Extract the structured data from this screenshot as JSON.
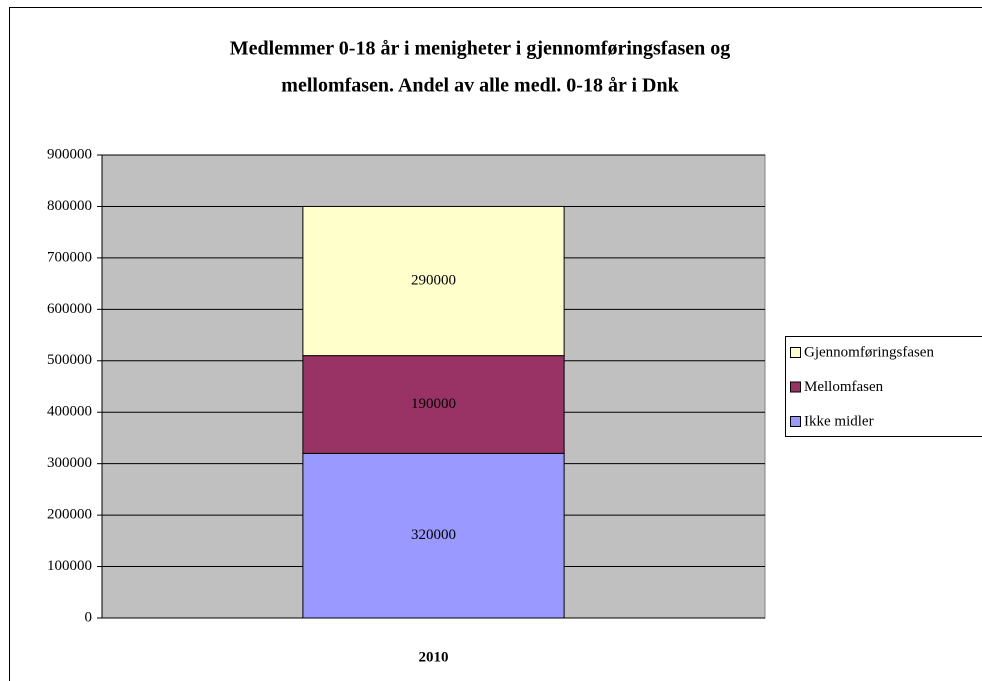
{
  "chart_data": {
    "type": "stacked_bar",
    "title": [
      "Medlemmer 0-18 år i menigheter i gjennomføringsfasen og",
      "mellomfasen. Andel av alle medl. 0-18 år i Dnk"
    ],
    "categories": [
      "2010"
    ],
    "series": [
      {
        "name": "Ikke midler",
        "color": "#9999ff",
        "values": [
          320000
        ]
      },
      {
        "name": "Mellomfasen",
        "color": "#993366",
        "values": [
          190000
        ]
      },
      {
        "name": "Gjennomføringsfasen",
        "color": "#ffffcc",
        "values": [
          290000
        ]
      }
    ],
    "ylim": [
      0,
      900000
    ],
    "yticks": [
      0,
      100000,
      200000,
      300000,
      400000,
      500000,
      600000,
      700000,
      800000,
      900000
    ],
    "grid": true,
    "legend": "right",
    "plot_background": "#c0c0c0"
  }
}
